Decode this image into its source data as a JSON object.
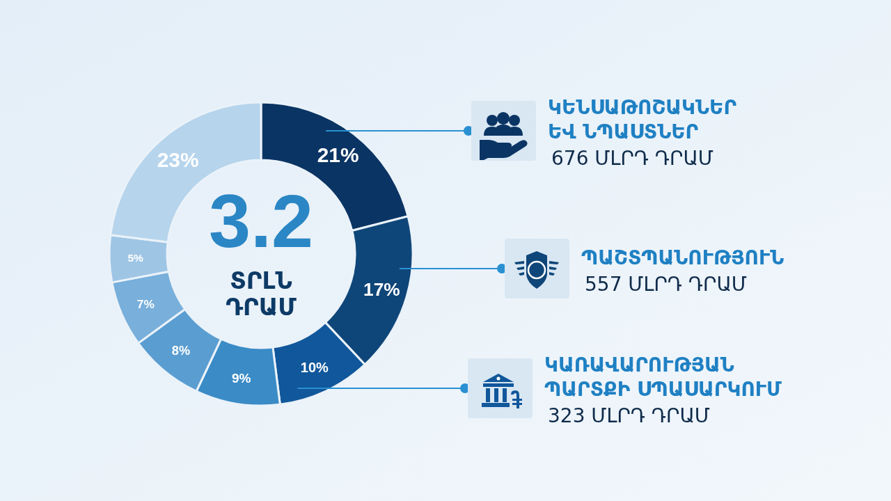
{
  "chart_data": {
    "type": "donut",
    "categories": [
      "ԿԵՆՍԱԹՈՇԱԿՆԵՐ ԵՎ ՆՊԱՍՏՆԵՐ",
      "ՊԱՇՏՊԱՆՈՒԹՅՈՒՆ",
      "ԿԱՌԱՎԱՐՈՒԹՅԱՆ ՊԱՐՏՔԻ ՍՊԱՍԱՐԿՈՒՄ",
      null,
      null,
      null,
      null,
      null
    ],
    "values": [
      21,
      17,
      10,
      9,
      8,
      7,
      5,
      23
    ],
    "colors": [
      "#0a3463",
      "#0f4679",
      "#11579b",
      "#3a8bc6",
      "#5a9dd1",
      "#78afdb",
      "#9fc5e5",
      "#b6d4ec"
    ],
    "value_labels": [
      "21%",
      "17%",
      "10%",
      "9%",
      "8%",
      "7%",
      "5%",
      "23%"
    ],
    "legend": "right",
    "annotations": [
      "3.2",
      "ՏՐԼՆ ԴՐԱՄ",
      "676 ՄԼՐԴ ԴՐԱՄ",
      "557 ՄԼՐԴ ԴՐԱՄ",
      "323 ՄԼՐԴ ԴՐԱՄ"
    ]
  }
}
